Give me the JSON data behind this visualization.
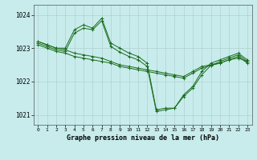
{
  "title": "Graphe pression niveau de la mer (hPa)",
  "background_color": "#c8ecec",
  "grid_color": "#b0d0d0",
  "line_color": "#1a6b1a",
  "xlim": [
    -0.5,
    23.5
  ],
  "ylim": [
    1020.7,
    1024.3
  ],
  "yticks": [
    1021,
    1022,
    1023,
    1024
  ],
  "xticks": [
    0,
    1,
    2,
    3,
    4,
    5,
    6,
    7,
    8,
    9,
    10,
    11,
    12,
    13,
    14,
    15,
    16,
    17,
    18,
    19,
    20,
    21,
    22,
    23
  ],
  "series": [
    [
      1023.2,
      1023.1,
      1023.0,
      1023.0,
      1023.55,
      1023.7,
      1023.6,
      1023.9,
      1023.15,
      1023.0,
      1022.85,
      1022.75,
      1022.55,
      1021.15,
      1021.2,
      1021.2,
      1021.6,
      1021.85,
      1022.3,
      1022.55,
      1022.65,
      1022.75,
      1022.85,
      1022.65
    ],
    [
      1023.15,
      1023.05,
      1022.95,
      1022.9,
      1023.45,
      1023.6,
      1023.55,
      1023.82,
      1023.05,
      1022.88,
      1022.75,
      1022.65,
      1022.45,
      1021.1,
      1021.15,
      1021.2,
      1021.55,
      1021.8,
      1022.2,
      1022.48,
      1022.6,
      1022.7,
      1022.8,
      1022.6
    ],
    [
      1023.1,
      1023.0,
      1022.9,
      1022.85,
      1022.75,
      1022.7,
      1022.65,
      1022.6,
      1022.55,
      1022.45,
      1022.4,
      1022.35,
      1022.3,
      1022.25,
      1022.2,
      1022.15,
      1022.1,
      1022.25,
      1022.4,
      1022.48,
      1022.55,
      1022.65,
      1022.75,
      1022.55
    ],
    [
      1023.2,
      1023.1,
      1023.0,
      1022.95,
      1022.85,
      1022.8,
      1022.75,
      1022.7,
      1022.6,
      1022.5,
      1022.45,
      1022.4,
      1022.35,
      1022.3,
      1022.25,
      1022.2,
      1022.15,
      1022.3,
      1022.45,
      1022.5,
      1022.55,
      1022.65,
      1022.7,
      1022.6
    ]
  ]
}
